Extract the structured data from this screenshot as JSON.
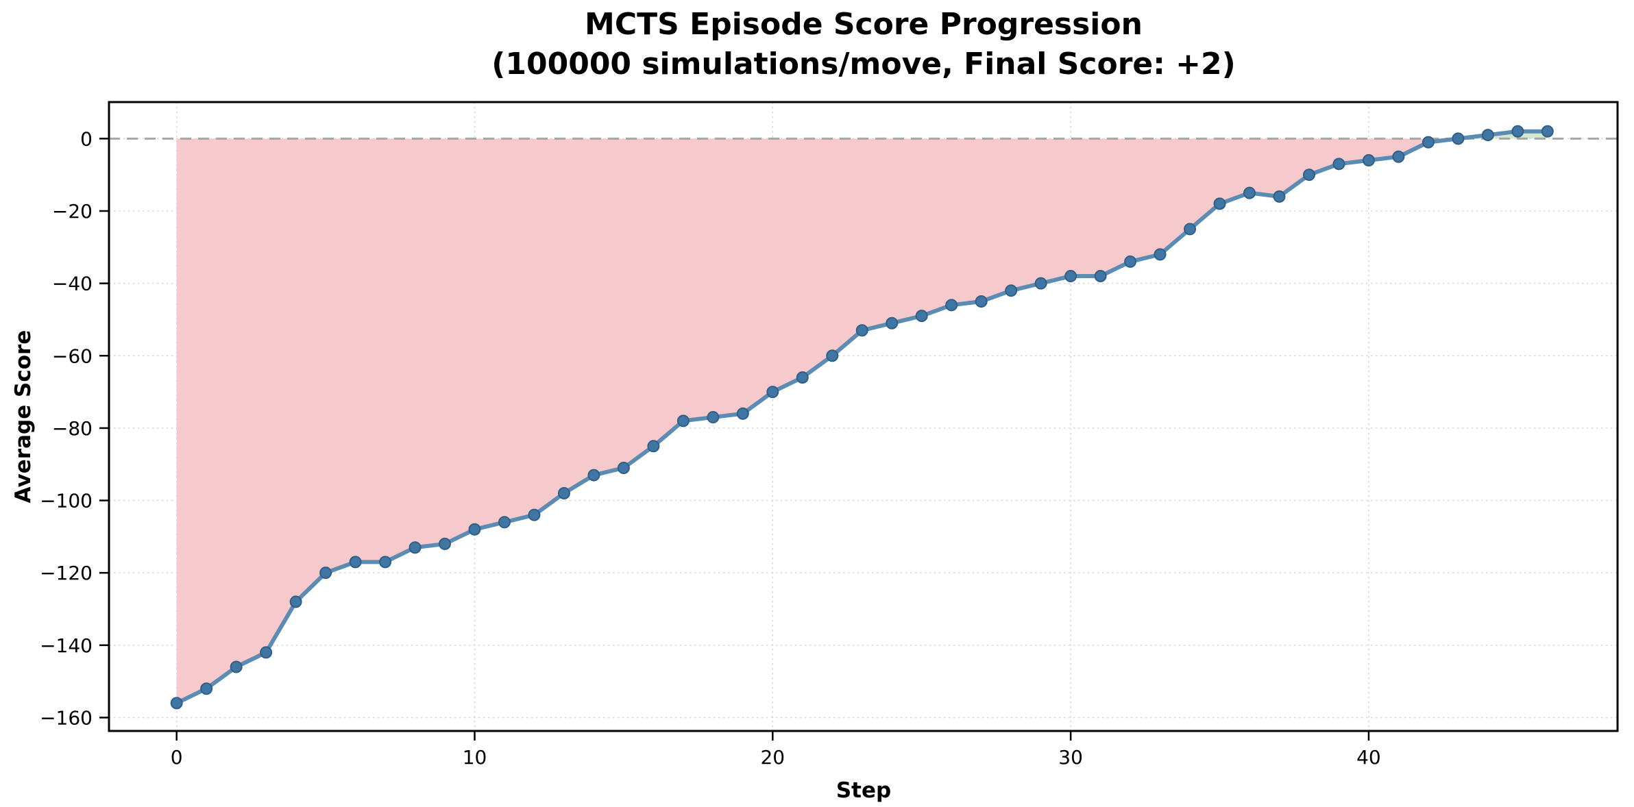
{
  "chart_data": {
    "type": "line",
    "title": "MCTS Episode Score Progression",
    "subtitle": "(100000 simulations/move, Final Score: +2)",
    "xlabel": "Step",
    "ylabel": "Average Score",
    "final_score": "+2",
    "simulations_per_move": 100000,
    "x": [
      0,
      1,
      2,
      3,
      4,
      5,
      6,
      7,
      8,
      9,
      10,
      11,
      12,
      13,
      14,
      15,
      16,
      17,
      18,
      19,
      20,
      21,
      22,
      23,
      24,
      25,
      26,
      27,
      28,
      29,
      30,
      31,
      32,
      33,
      34,
      35,
      36,
      37,
      38,
      39,
      40,
      41,
      42,
      43,
      44,
      45,
      46
    ],
    "series": [
      {
        "name": "Average Score",
        "values": [
          -156,
          -152,
          -146,
          -142,
          -128,
          -120,
          -117,
          -117,
          -113,
          -112,
          -108,
          -106,
          -104,
          -98,
          -93,
          -91,
          -85,
          -78,
          -77,
          -76,
          -70,
          -66,
          -60,
          -53,
          -51,
          -49,
          -46,
          -45,
          -42,
          -40,
          -38,
          -38,
          -34,
          -32,
          -25,
          -18,
          -15,
          -16,
          -10,
          -7,
          -6,
          -5,
          -1,
          0,
          1,
          2,
          2
        ]
      }
    ],
    "xticks": [
      0,
      10,
      20,
      30,
      40
    ],
    "yticks": [
      0,
      -20,
      -40,
      -60,
      -80,
      -100,
      -120,
      -140,
      -160
    ],
    "xlim": [
      -2.27,
      48.35
    ],
    "ylim": [
      -163.7,
      10.1
    ],
    "grid": true,
    "legend": "none",
    "zero_reference_line": 0,
    "colors": {
      "line": "#5b8cb4",
      "marker": "#4076a3",
      "marker_edge": "#2f5f87",
      "fill_negative": "#f6c9cc",
      "fill_positive": "#d5e8cd",
      "zero_line": "#a6a6a6",
      "grid": "#d6d6d6",
      "spine": "#000000"
    }
  }
}
